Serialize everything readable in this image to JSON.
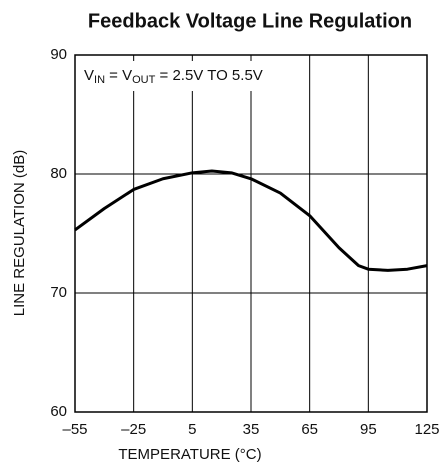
{
  "chart_data": {
    "type": "line",
    "title": "Feedback Voltage Line Regulation",
    "annotation": [
      {
        "text": "V"
      },
      {
        "text": "IN",
        "sub": true
      },
      {
        "text": " = V"
      },
      {
        "text": "OUT",
        "sub": true
      },
      {
        "text": " = 2.5V TO 5.5V"
      }
    ],
    "x_label": "TEMPERATURE (°C)",
    "y_label": "LINE REGULATION (dB)",
    "x": [
      -55,
      -40,
      -25,
      -10,
      5,
      15,
      25,
      35,
      50,
      65,
      80,
      90,
      95,
      105,
      115,
      125
    ],
    "series": [
      {
        "name": "Line Regulation",
        "color": "#000000",
        "values": [
          75.3,
          77.1,
          78.7,
          79.6,
          80.1,
          80.25,
          80.1,
          79.6,
          78.4,
          76.5,
          73.8,
          72.3,
          72.0,
          71.9,
          72.0,
          72.3
        ]
      }
    ],
    "xlim": [
      -55,
      125
    ],
    "xticks": [
      {
        "value": -55,
        "label": "–55"
      },
      {
        "value": -25,
        "label": "–25"
      },
      5,
      35,
      65,
      95,
      125
    ],
    "ylim": [
      60,
      90
    ],
    "yticks": [
      60,
      70,
      80,
      90
    ],
    "grid": true
  }
}
